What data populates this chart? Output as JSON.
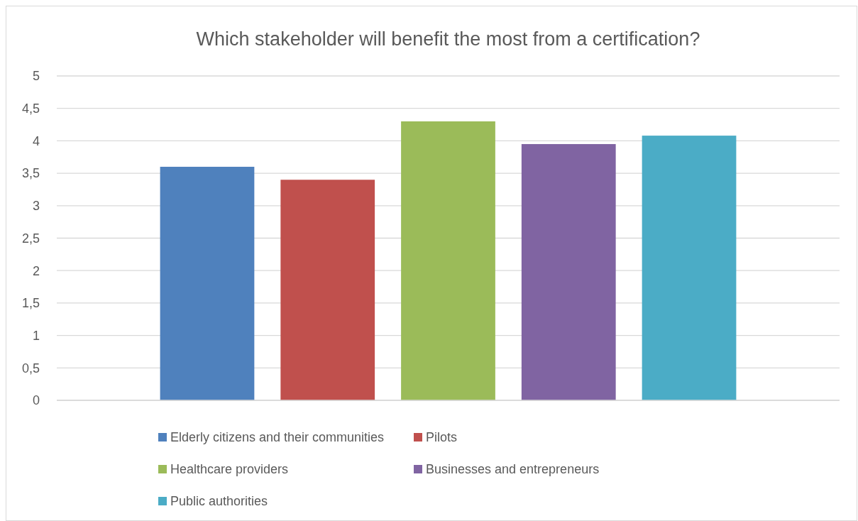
{
  "chart_data": {
    "type": "bar",
    "title": "Which stakeholder will benefit the most from a certification?",
    "categories": [
      null
    ],
    "series": [
      {
        "name": "Elderly citizens and their communities",
        "color": "#4f81bd",
        "values": [
          3.6
        ]
      },
      {
        "name": "Pilots",
        "color": "#c0504d",
        "values": [
          3.4
        ]
      },
      {
        "name": "Healthcare providers",
        "color": "#9bbb59",
        "values": [
          4.3
        ]
      },
      {
        "name": "Businesses and entrepreneurs",
        "color": "#8064a2",
        "values": [
          3.95
        ]
      },
      {
        "name": "Public authorities",
        "color": "#4bacc6",
        "values": [
          4.08
        ]
      }
    ],
    "ylim": [
      0,
      5
    ],
    "yticks": [
      0,
      {
        "value": 0.5,
        "label": "0,5"
      },
      1,
      {
        "value": 1.5,
        "label": "1,5"
      },
      2,
      {
        "value": 2.5,
        "label": "2,5"
      },
      3,
      {
        "value": 3.5,
        "label": "3,5"
      },
      4,
      {
        "value": 4.5,
        "label": "4,5"
      },
      5
    ],
    "grid": "y",
    "legend": "bottom"
  }
}
